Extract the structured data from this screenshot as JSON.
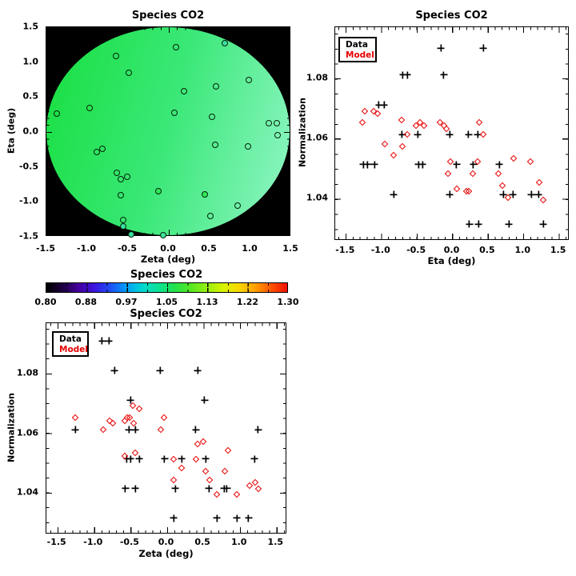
{
  "figure": {
    "background": "#ffffff"
  },
  "chart_data": [
    {
      "id": "map",
      "type": "scatter",
      "title": "Species CO2",
      "xlabel": "Zeta (deg)",
      "ylabel": "Eta (deg)",
      "xlim": [
        -1.5,
        1.5
      ],
      "ylim": [
        -1.5,
        1.5
      ],
      "xticks": [
        "-1.5",
        "-1.0",
        "-0.5",
        "0.0",
        "0.5",
        "1.0",
        "1.5"
      ],
      "yticks": [
        "1.5",
        "1.0",
        "0.5",
        "0.0",
        "-0.5",
        "-1.0",
        "-1.5"
      ],
      "background": "#000000",
      "disk": {
        "angle": "105deg",
        "colors": [
          "#17df3f",
          "#3be878",
          "#93f6c8"
        ]
      },
      "marker": "open-circle",
      "points": [
        [
          0.1,
          1.21,
          null
        ],
        [
          0.7,
          1.27,
          "#38dfa0"
        ],
        [
          -0.64,
          1.09,
          null
        ],
        [
          -0.48,
          0.84,
          null
        ],
        [
          0.2,
          0.58,
          null
        ],
        [
          0.59,
          0.65,
          null
        ],
        [
          1.0,
          0.74,
          null
        ],
        [
          -1.37,
          0.25,
          null
        ],
        [
          -0.97,
          0.33,
          "#2de84f"
        ],
        [
          0.08,
          0.26,
          null
        ],
        [
          0.54,
          0.21,
          null
        ],
        [
          1.24,
          0.12,
          null
        ],
        [
          1.34,
          0.12,
          null
        ],
        [
          1.35,
          -0.06,
          null
        ],
        [
          0.58,
          -0.2,
          null
        ],
        [
          0.99,
          -0.22,
          null
        ],
        [
          -0.88,
          -0.3,
          null
        ],
        [
          -0.81,
          -0.25,
          null
        ],
        [
          -0.63,
          -0.6,
          null
        ],
        [
          -0.58,
          -0.69,
          null
        ],
        [
          -0.5,
          -0.66,
          null
        ],
        [
          -0.58,
          -0.92,
          null
        ],
        [
          -0.12,
          -0.86,
          "#30ea55"
        ],
        [
          0.45,
          -0.91,
          "#30ea55"
        ],
        [
          0.86,
          -1.07,
          null
        ],
        [
          0.52,
          -1.22,
          null
        ],
        [
          -0.55,
          -1.28,
          null
        ],
        [
          -0.55,
          -1.37,
          "#38dfa0"
        ],
        [
          -0.45,
          -1.49,
          "#38dfa0"
        ],
        [
          -0.06,
          -1.5,
          "#3fe39b"
        ]
      ]
    },
    {
      "id": "eta_scatter",
      "type": "scatter",
      "title": "Species CO2",
      "xlabel": "Eta (deg)",
      "ylabel": "Normalization",
      "xlim": [
        -1.65,
        1.65
      ],
      "ylim": [
        1.026,
        1.097
      ],
      "xticks": [
        "-1.5",
        "-1.0",
        "-0.5",
        "0.0",
        "0.5",
        "1.0",
        "1.5"
      ],
      "yticks": [
        "1.08",
        "1.06",
        "1.04"
      ],
      "legend": {
        "data": "Data",
        "model": "Model",
        "data_color": "#000000",
        "model_color": "#e60000"
      },
      "series": [
        {
          "name": "Data",
          "marker": "plus",
          "color": "#000000",
          "points": [
            [
              -0.15,
              1.09
            ],
            [
              0.45,
              1.09
            ],
            [
              -0.69,
              1.081
            ],
            [
              -0.63,
              1.081
            ],
            [
              -0.11,
              1.081
            ],
            [
              -1.03,
              1.071
            ],
            [
              -0.96,
              1.071
            ],
            [
              -0.7,
              1.061
            ],
            [
              -0.48,
              1.061
            ],
            [
              -0.03,
              1.061
            ],
            [
              0.24,
              1.061
            ],
            [
              0.37,
              1.061
            ],
            [
              -1.25,
              1.051
            ],
            [
              -1.19,
              1.051
            ],
            [
              -1.09,
              1.051
            ],
            [
              -0.47,
              1.051
            ],
            [
              -0.41,
              1.051
            ],
            [
              0.07,
              1.051
            ],
            [
              0.31,
              1.051
            ],
            [
              0.68,
              1.051
            ],
            [
              -0.82,
              1.041
            ],
            [
              -0.03,
              1.041
            ],
            [
              0.73,
              1.041
            ],
            [
              0.87,
              1.041
            ],
            [
              1.13,
              1.041
            ],
            [
              1.23,
              1.041
            ],
            [
              0.25,
              1.031
            ],
            [
              0.38,
              1.031
            ],
            [
              0.81,
              1.031
            ],
            [
              1.3,
              1.031
            ]
          ]
        },
        {
          "name": "Model",
          "marker": "diamond",
          "color": "#e60000",
          "points": [
            [
              -1.27,
              1.065
            ],
            [
              -1.23,
              1.069
            ],
            [
              -1.11,
              1.069
            ],
            [
              -1.05,
              1.068
            ],
            [
              -0.95,
              1.058
            ],
            [
              -0.82,
              1.054
            ],
            [
              -0.71,
              1.066
            ],
            [
              -0.7,
              1.057
            ],
            [
              -0.63,
              1.061
            ],
            [
              -0.5,
              1.064
            ],
            [
              -0.45,
              1.065
            ],
            [
              -0.39,
              1.064
            ],
            [
              -0.16,
              1.065
            ],
            [
              -0.11,
              1.064
            ],
            [
              -0.07,
              1.063
            ],
            [
              -0.05,
              1.048
            ],
            [
              -0.02,
              1.052
            ],
            [
              0.07,
              1.043
            ],
            [
              0.21,
              1.042
            ],
            [
              0.24,
              1.042
            ],
            [
              0.3,
              1.048
            ],
            [
              0.37,
              1.052
            ],
            [
              0.39,
              1.065
            ],
            [
              0.45,
              1.061
            ],
            [
              0.66,
              1.048
            ],
            [
              0.72,
              1.044
            ],
            [
              0.8,
              1.04
            ],
            [
              0.88,
              1.053
            ],
            [
              1.12,
              1.052
            ],
            [
              1.24,
              1.045
            ],
            [
              1.3,
              1.039
            ]
          ]
        }
      ]
    },
    {
      "id": "colorbar",
      "type": "colorbar",
      "title": "Species CO2",
      "tick_labels": [
        "0.80",
        "0.88",
        "0.97",
        "1.05",
        "1.13",
        "1.22",
        "1.30"
      ],
      "range": [
        0.8,
        1.3
      ],
      "stops": [
        "#000000",
        "#1e0040",
        "#44009e",
        "#3c14e0",
        "#1e50f5",
        "#00a0f8",
        "#00d8d0",
        "#0ce294",
        "#22e24c",
        "#55e822",
        "#96ef10",
        "#d8f400",
        "#f8d800",
        "#ffa000",
        "#ff5400",
        "#f01000"
      ]
    },
    {
      "id": "zeta_scatter",
      "type": "scatter",
      "title": "Species CO2",
      "xlabel": "Zeta (deg)",
      "ylabel": "Normalization",
      "xlim": [
        -1.65,
        1.65
      ],
      "ylim": [
        1.026,
        1.097
      ],
      "xticks": [
        "-1.5",
        "-1.0",
        "-0.5",
        "0.0",
        "0.5",
        "1.0",
        "1.5"
      ],
      "yticks": [
        "1.08",
        "1.06",
        "1.04"
      ],
      "legend": {
        "data": "Data",
        "model": "Model",
        "data_color": "#000000",
        "model_color": "#e60000"
      },
      "series": [
        {
          "name": "Data",
          "marker": "plus",
          "color": "#000000",
          "points": [
            [
              -0.88,
              1.091
            ],
            [
              -0.79,
              1.091
            ],
            [
              -0.71,
              1.081
            ],
            [
              -0.08,
              1.081
            ],
            [
              0.44,
              1.081
            ],
            [
              -0.49,
              1.071
            ],
            [
              0.53,
              1.071
            ],
            [
              -1.25,
              1.061
            ],
            [
              -0.51,
              1.061
            ],
            [
              -0.42,
              1.061
            ],
            [
              0.41,
              1.061
            ],
            [
              1.27,
              1.061
            ],
            [
              -0.54,
              1.051
            ],
            [
              -0.49,
              1.051
            ],
            [
              -0.37,
              1.051
            ],
            [
              -0.02,
              1.051
            ],
            [
              0.22,
              1.051
            ],
            [
              0.55,
              1.051
            ],
            [
              1.22,
              1.051
            ],
            [
              -0.56,
              1.041
            ],
            [
              -0.42,
              1.041
            ],
            [
              0.13,
              1.041
            ],
            [
              0.59,
              1.041
            ],
            [
              0.8,
              1.041
            ],
            [
              0.84,
              1.041
            ],
            [
              0.11,
              1.031
            ],
            [
              0.7,
              1.031
            ],
            [
              0.98,
              1.031
            ],
            [
              1.14,
              1.031
            ]
          ]
        },
        {
          "name": "Model",
          "marker": "diamond",
          "color": "#e60000",
          "points": [
            [
              -1.25,
              1.065
            ],
            [
              -0.87,
              1.061
            ],
            [
              -0.78,
              1.064
            ],
            [
              -0.73,
              1.063
            ],
            [
              -0.57,
              1.064
            ],
            [
              -0.54,
              1.065
            ],
            [
              -0.5,
              1.065
            ],
            [
              -0.46,
              1.069
            ],
            [
              -0.45,
              1.063
            ],
            [
              -0.37,
              1.068
            ],
            [
              -0.57,
              1.052
            ],
            [
              -0.43,
              1.053
            ],
            [
              -0.07,
              1.061
            ],
            [
              -0.03,
              1.065
            ],
            [
              0.1,
              1.051
            ],
            [
              0.11,
              1.044
            ],
            [
              0.21,
              1.048
            ],
            [
              0.41,
              1.051
            ],
            [
              0.44,
              1.056
            ],
            [
              0.51,
              1.057
            ],
            [
              0.55,
              1.047
            ],
            [
              0.6,
              1.044
            ],
            [
              0.7,
              1.039
            ],
            [
              0.81,
              1.047
            ],
            [
              0.85,
              1.054
            ],
            [
              0.98,
              1.039
            ],
            [
              1.15,
              1.042
            ],
            [
              1.23,
              1.043
            ],
            [
              1.28,
              1.041
            ]
          ]
        }
      ]
    }
  ]
}
